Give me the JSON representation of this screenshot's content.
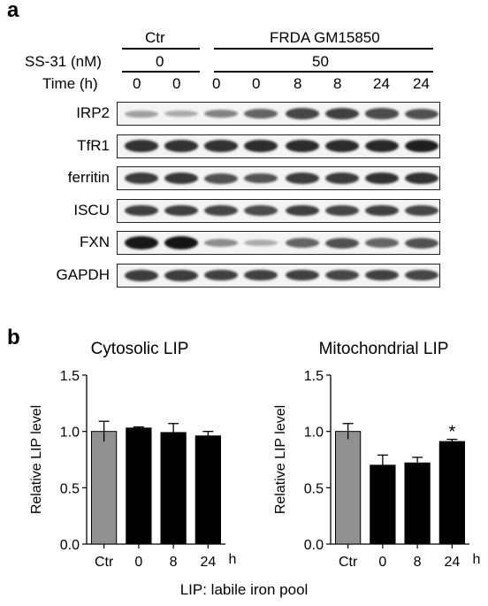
{
  "panel_a": {
    "letter": "a",
    "groups": {
      "ctr": "Ctr",
      "frda": "FRDA GM15850"
    },
    "rows": {
      "ss31": {
        "label": "SS-31 (nM)",
        "ctr_value": "0",
        "frda_value": "50"
      },
      "time": {
        "label": "Time (h)",
        "values": [
          "0",
          "0",
          "0",
          "0",
          "8",
          "8",
          "24",
          "24"
        ]
      }
    },
    "blots": [
      {
        "label": "IRP2",
        "intensity": [
          0.3,
          0.25,
          0.45,
          0.6,
          0.75,
          0.78,
          0.72,
          0.7
        ]
      },
      {
        "label": "TfR1",
        "intensity": [
          0.85,
          0.85,
          0.85,
          0.88,
          0.88,
          0.88,
          0.9,
          0.95
        ]
      },
      {
        "label": "ferritin",
        "intensity": [
          0.8,
          0.82,
          0.7,
          0.68,
          0.8,
          0.8,
          0.85,
          0.85
        ]
      },
      {
        "label": "ISCU",
        "intensity": [
          0.78,
          0.78,
          0.75,
          0.72,
          0.78,
          0.75,
          0.78,
          0.75
        ]
      },
      {
        "label": "FXN",
        "intensity": [
          0.98,
          1.0,
          0.4,
          0.25,
          0.6,
          0.7,
          0.6,
          0.7
        ]
      },
      {
        "label": "GAPDH",
        "intensity": [
          0.8,
          0.8,
          0.78,
          0.78,
          0.78,
          0.75,
          0.78,
          0.75
        ]
      }
    ]
  },
  "panel_b": {
    "letter": "b",
    "footnote": "LIP: labile iron pool"
  },
  "chart_data": [
    {
      "type": "bar",
      "title": "Cytosolic LIP",
      "ylabel": "Relative LIP level",
      "xlabel": "",
      "categories": [
        "Ctr",
        "0",
        "8",
        "24"
      ],
      "x_unit": "h",
      "values": [
        1.0,
        1.03,
        0.99,
        0.96
      ],
      "errors": [
        0.09,
        0.01,
        0.08,
        0.04
      ],
      "bar_colors": [
        "#909090",
        "#000000",
        "#000000",
        "#000000"
      ],
      "significance": [
        "",
        "",
        "",
        ""
      ],
      "ylim": [
        0,
        1.5
      ],
      "yticks": [
        "0.0",
        "0.5",
        "1.0",
        "1.5"
      ]
    },
    {
      "type": "bar",
      "title": "Mitochondrial LIP",
      "ylabel": "Relative LIP level",
      "xlabel": "",
      "categories": [
        "Ctr",
        "0",
        "8",
        "24"
      ],
      "x_unit": "h",
      "values": [
        1.0,
        0.7,
        0.72,
        0.91
      ],
      "errors": [
        0.07,
        0.09,
        0.05,
        0.02
      ],
      "bar_colors": [
        "#909090",
        "#000000",
        "#000000",
        "#000000"
      ],
      "significance": [
        "",
        "",
        "",
        "*"
      ],
      "ylim": [
        0,
        1.5
      ],
      "yticks": [
        "0.0",
        "0.5",
        "1.0",
        "1.5"
      ]
    }
  ]
}
